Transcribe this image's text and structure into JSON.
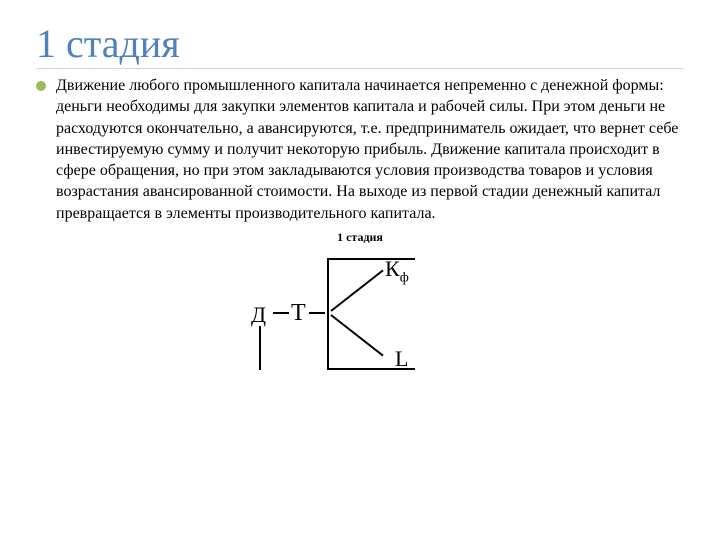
{
  "title": "1 стадия",
  "bullet_color": "#9bbb59",
  "title_color": "#4f81bd",
  "body": "Движение любого промышленного капитала начинается непременно с денежной формы: деньги необходимы для закупки элементов капитала и рабочей силы. При этом деньги не расходуются окончательно, а авансируются, т.е. предприниматель ожидает, что вернет себе инвестируемую сумму и получит некоторую прибыль. Движение капитала происходит в сфере обращения, но при этом закладываются условия производства товаров и условия возрастания авансированной стоимости. На выходе из первой стадии денежный капитал превращается в элементы производительного капитала.",
  "diagram": {
    "caption": "1 стадия",
    "nodes": {
      "D": "Д",
      "T": "Т",
      "K": "К",
      "K_sub": "ф",
      "L": "L"
    },
    "line_color": "#000000"
  }
}
